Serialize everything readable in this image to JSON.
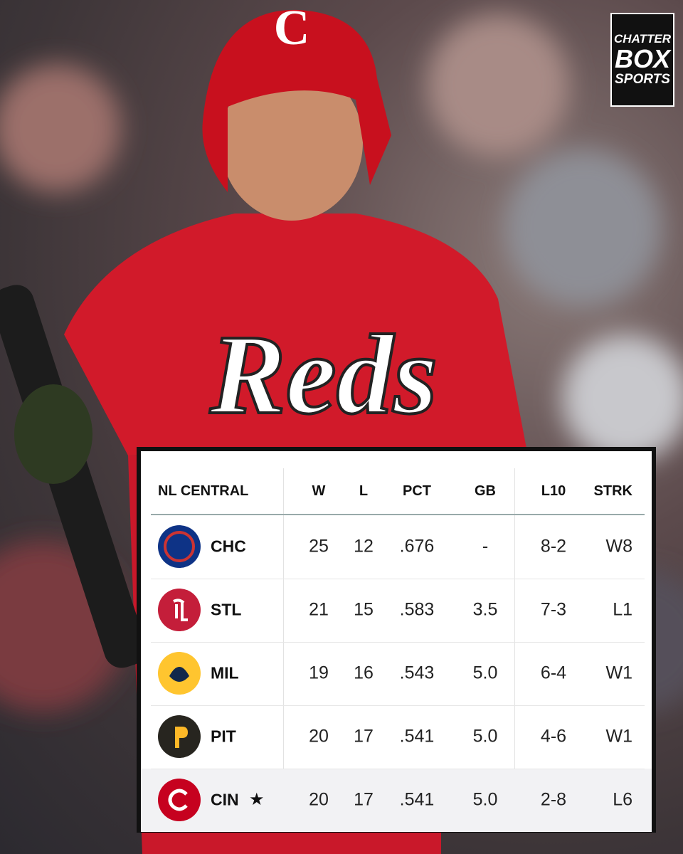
{
  "logo": {
    "lines": [
      "CHATTER",
      "BOX",
      "SPORTS"
    ]
  },
  "photo": {
    "helmet_letter": "C",
    "jersey_text": "Reds"
  },
  "table": {
    "columns": [
      "NL CENTRAL",
      "W",
      "L",
      "PCT",
      "GB",
      "L10",
      "STRK"
    ],
    "rows": [
      {
        "team": "CHC",
        "cells": [
          "25",
          "12",
          ".676",
          "-",
          "8-2",
          "W8"
        ]
      },
      {
        "team": "STL",
        "cells": [
          "21",
          "15",
          ".583",
          "3.5",
          "7-3",
          "L1"
        ]
      },
      {
        "team": "MIL",
        "cells": [
          "19",
          "16",
          ".543",
          "5.0",
          "6-4",
          "W1"
        ]
      },
      {
        "team": "PIT",
        "cells": [
          "20",
          "17",
          ".541",
          "5.0",
          "4-6",
          "W1"
        ]
      },
      {
        "team": "CIN",
        "star": "★",
        "cells": [
          "20",
          "17",
          ".541",
          "5.0",
          "2-8",
          "L6"
        ]
      }
    ]
  }
}
